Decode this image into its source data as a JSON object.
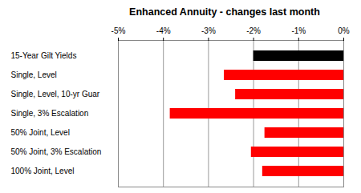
{
  "chart_data": {
    "type": "bar",
    "title": "Enhanced Annuity - changes last month",
    "orientation": "horizontal",
    "categories": [
      "15-Year Gilt Yields",
      "Single, Level",
      "Single, Level, 10-yr Guar",
      "Single, 3% Escalation",
      "50% Joint, Level",
      "50% Joint, 3% Escalation",
      "100% Joint, Level"
    ],
    "values": [
      -2.0,
      -2.65,
      -2.4,
      -3.85,
      -1.75,
      -2.05,
      -1.8
    ],
    "colors": [
      "#000000",
      "#ff0000",
      "#ff0000",
      "#ff0000",
      "#ff0000",
      "#ff0000",
      "#ff0000"
    ],
    "xlim": [
      -5,
      0
    ],
    "xticks": [
      {
        "value": -5,
        "label": "-5%"
      },
      {
        "value": -4,
        "label": "-4%"
      },
      {
        "value": -3,
        "label": "-3%"
      },
      {
        "value": -2,
        "label": "-2%"
      },
      {
        "value": -1,
        "label": "-1%"
      },
      {
        "value": 0,
        "label": "0%"
      }
    ],
    "grid": true
  }
}
